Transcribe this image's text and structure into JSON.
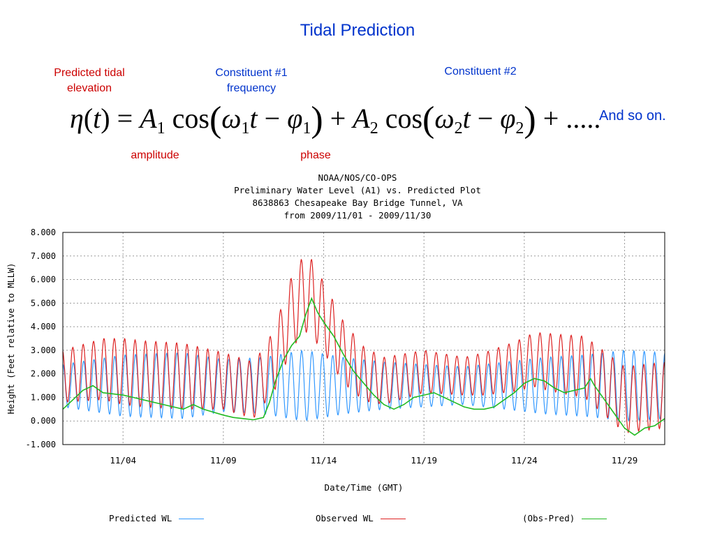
{
  "slide": {
    "title": "Tidal Prediction",
    "labels": {
      "predicted_tidal_elevation": "Predicted tidal\nelevation",
      "constituent_1_frequency": "Constituent #1\nfrequency",
      "constituent_2": "Constituent #2",
      "amplitude": "amplitude",
      "phase": "phase",
      "and_so_on": "And so on."
    },
    "equation": {
      "eta": "η",
      "t": "t",
      "equals": "=",
      "A": "A",
      "sub1": "1",
      "sub2": "2",
      "cos": "cos",
      "omega": "ω",
      "minus": "−",
      "phi": "φ",
      "plus": "+",
      "dots": "....."
    }
  },
  "chart_data": {
    "type": "line",
    "header": [
      "NOAA/NOS/CO-OPS",
      "Preliminary  Water Level (A1) vs. Predicted Plot",
      "8638863 Chesapeake Bay Bridge Tunnel, VA",
      "from 2009/11/01 - 2009/11/30"
    ],
    "xlabel": "Date/Time (GMT)",
    "ylabel": "Height\n(Feet relative to MLLW)",
    "ylim": [
      -1,
      8
    ],
    "xlim_days": [
      1,
      31
    ],
    "yticks": [
      "-1.000",
      "0.000",
      "1.000",
      "2.000",
      "3.000",
      "4.000",
      "5.000",
      "6.000",
      "7.000",
      "8.000"
    ],
    "xticks": [
      {
        "label": "11/04",
        "day": 4
      },
      {
        "label": "11/09",
        "day": 9
      },
      {
        "label": "11/14",
        "day": 14
      },
      {
        "label": "11/19",
        "day": 19
      },
      {
        "label": "11/24",
        "day": 24
      },
      {
        "label": "11/29",
        "day": 29
      }
    ],
    "grid": true,
    "legend_placement": "bottom",
    "series": [
      {
        "name": "Predicted WL",
        "color": "#3399ff",
        "mean": [
          [
            1,
            1.5
          ],
          [
            31,
            1.5
          ]
        ],
        "amplitude": [
          [
            1,
            0.9
          ],
          [
            4,
            1.3
          ],
          [
            7,
            1.4
          ],
          [
            9,
            1.1
          ],
          [
            11,
            1.2
          ],
          [
            13,
            1.5
          ],
          [
            15,
            1.2
          ],
          [
            17,
            1.0
          ],
          [
            19,
            0.9
          ],
          [
            21,
            0.8
          ],
          [
            23,
            1.0
          ],
          [
            25,
            1.2
          ],
          [
            27,
            1.3
          ],
          [
            29,
            1.5
          ],
          [
            31,
            1.4
          ]
        ]
      },
      {
        "name": "Observed WL",
        "color": "#dd2222",
        "mean": [
          [
            1,
            1.9
          ],
          [
            3,
            2.2
          ],
          [
            5,
            2.0
          ],
          [
            7,
            1.9
          ],
          [
            9,
            1.7
          ],
          [
            10.5,
            1.3
          ],
          [
            11.5,
            2.5
          ],
          [
            12.5,
            4.8
          ],
          [
            13.2,
            5.5
          ],
          [
            14,
            4.4
          ],
          [
            15,
            2.9
          ],
          [
            16,
            2.0
          ],
          [
            17,
            1.7
          ],
          [
            18,
            1.9
          ],
          [
            19,
            2.1
          ],
          [
            21,
            1.9
          ],
          [
            22,
            2.0
          ],
          [
            23.5,
            2.3
          ],
          [
            24.5,
            2.6
          ],
          [
            26,
            2.4
          ],
          [
            27,
            2.3
          ],
          [
            28,
            1.6
          ],
          [
            29,
            0.9
          ],
          [
            30,
            1.0
          ],
          [
            31,
            1.1
          ]
        ],
        "amplitude": [
          [
            1,
            1.1
          ],
          [
            4,
            1.4
          ],
          [
            7,
            1.4
          ],
          [
            9,
            1.2
          ],
          [
            11,
            1.2
          ],
          [
            13,
            1.7
          ],
          [
            15,
            1.3
          ],
          [
            17,
            1.0
          ],
          [
            19,
            0.9
          ],
          [
            21,
            0.8
          ],
          [
            23,
            1.0
          ],
          [
            25,
            1.2
          ],
          [
            27,
            1.3
          ],
          [
            29,
            1.4
          ],
          [
            31,
            1.4
          ]
        ]
      },
      {
        "name": "(Obs-Pred)",
        "color": "#22bb22",
        "points": [
          [
            1,
            0.5
          ],
          [
            1.5,
            0.9
          ],
          [
            2,
            1.3
          ],
          [
            2.5,
            1.5
          ],
          [
            3,
            1.2
          ],
          [
            4,
            1.1
          ],
          [
            4.5,
            1.0
          ],
          [
            5,
            0.9
          ],
          [
            6,
            0.7
          ],
          [
            7,
            0.5
          ],
          [
            7.5,
            0.7
          ],
          [
            8,
            0.5
          ],
          [
            9,
            0.25
          ],
          [
            9.5,
            0.15
          ],
          [
            10,
            0.1
          ],
          [
            10.5,
            0.05
          ],
          [
            11,
            0.15
          ],
          [
            11.3,
            0.8
          ],
          [
            11.6,
            1.7
          ],
          [
            12,
            2.6
          ],
          [
            12.4,
            3.2
          ],
          [
            12.8,
            3.6
          ],
          [
            13.1,
            4.5
          ],
          [
            13.4,
            5.2
          ],
          [
            13.7,
            4.6
          ],
          [
            14,
            4.2
          ],
          [
            14.5,
            3.6
          ],
          [
            15,
            2.8
          ],
          [
            15.5,
            2.1
          ],
          [
            16,
            1.6
          ],
          [
            16.5,
            1.1
          ],
          [
            17,
            0.7
          ],
          [
            17.5,
            0.5
          ],
          [
            18,
            0.7
          ],
          [
            18.5,
            1.0
          ],
          [
            19,
            1.1
          ],
          [
            19.5,
            1.2
          ],
          [
            20,
            1.0
          ],
          [
            20.5,
            0.8
          ],
          [
            21,
            0.6
          ],
          [
            21.5,
            0.5
          ],
          [
            22,
            0.5
          ],
          [
            22.5,
            0.6
          ],
          [
            23,
            0.9
          ],
          [
            23.5,
            1.2
          ],
          [
            24,
            1.6
          ],
          [
            24.5,
            1.8
          ],
          [
            25,
            1.7
          ],
          [
            25.5,
            1.4
          ],
          [
            26,
            1.2
          ],
          [
            26.5,
            1.3
          ],
          [
            27,
            1.4
          ],
          [
            27.3,
            1.8
          ],
          [
            27.5,
            1.5
          ],
          [
            28,
            0.9
          ],
          [
            28.5,
            0.3
          ],
          [
            29,
            -0.3
          ],
          [
            29.5,
            -0.6
          ],
          [
            30,
            -0.3
          ],
          [
            30.5,
            -0.2
          ],
          [
            31,
            0.1
          ]
        ]
      }
    ]
  }
}
